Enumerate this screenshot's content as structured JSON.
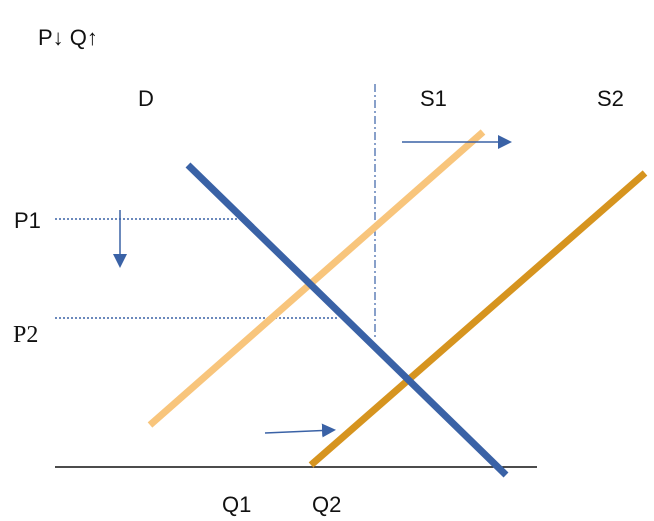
{
  "header": {
    "text": "P↓  Q↑"
  },
  "labels": {
    "demand": "D",
    "supply1": "S1",
    "supply2": "S2",
    "price1": "P1",
    "price2": "P2",
    "quantity1": "Q1",
    "quantity2": "Q2"
  },
  "colors": {
    "demand": "#3a62a6",
    "supply1": "#f8c57c",
    "supply2": "#d6941f",
    "arrows": "#3a62a6",
    "guides": "#3a62a6",
    "axis": "#111111"
  }
}
